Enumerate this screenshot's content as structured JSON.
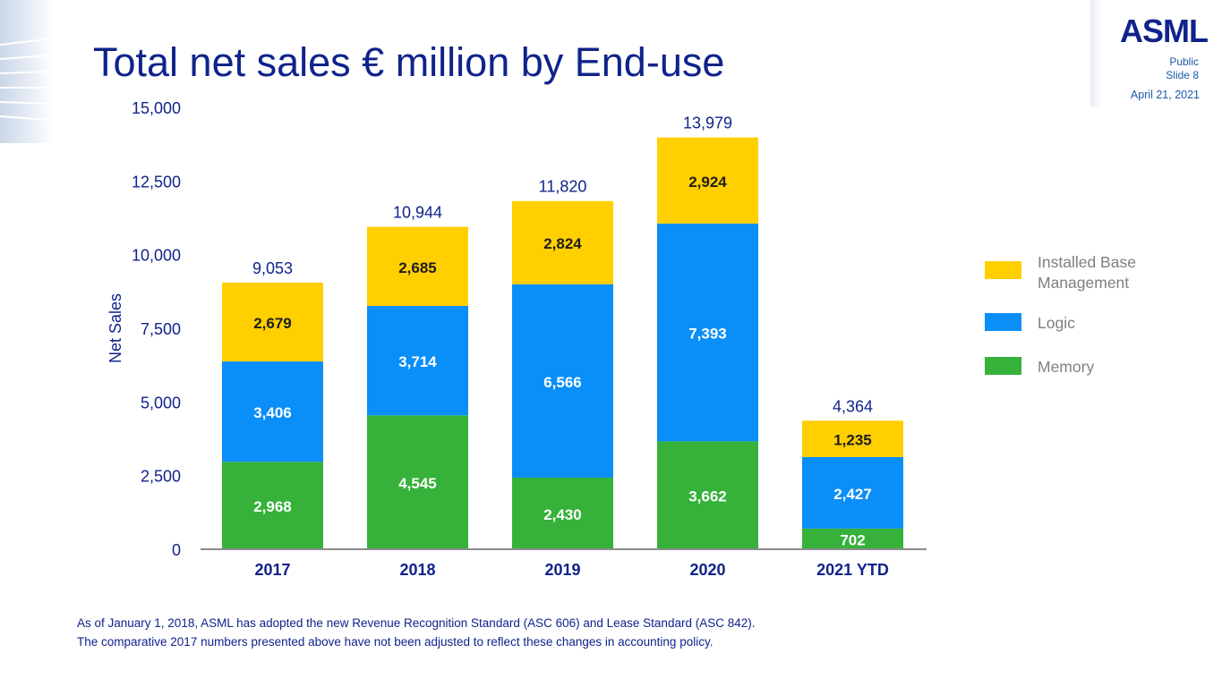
{
  "slide": {
    "title": "Total net sales € million by End-use",
    "logo_text": "ASML",
    "classification": "Public",
    "slide_number": "Slide 8",
    "date": "April 21, 2021",
    "footnote_lines": [
      "As of January 1, 2018, ASML has adopted the new Revenue Recognition Standard (ASC 606) and Lease Standard (ASC 842).",
      "The comparative 2017 numbers presented above have not been adjusted to reflect these changes in accounting policy."
    ]
  },
  "chart_data": {
    "type": "bar",
    "stacked": true,
    "ylabel": "Net Sales",
    "ylim": [
      0,
      15000
    ],
    "yticks": [
      0,
      2500,
      5000,
      7500,
      10000,
      12500,
      15000
    ],
    "ytick_labels": [
      "0",
      "2,500",
      "5,000",
      "7,500",
      "10,000",
      "12,500",
      "15,000"
    ],
    "categories": [
      "2017",
      "2018",
      "2019",
      "2020",
      "2021 YTD"
    ],
    "series": [
      {
        "name": "Memory",
        "color": "#36b13a",
        "values": [
          2968,
          4545,
          2430,
          3662,
          702
        ],
        "labels": [
          "2,968",
          "4,545",
          "2,430",
          "3,662",
          "702"
        ],
        "label_color": "#ffffff"
      },
      {
        "name": "Logic",
        "color": "#0a8ef8",
        "values": [
          3406,
          3714,
          6566,
          7393,
          2427
        ],
        "labels": [
          "3,406",
          "3,714",
          "6,566",
          "7,393",
          "2,427"
        ],
        "label_color": "#ffffff"
      },
      {
        "name": "Installed Base Management",
        "color": "#ffcf00",
        "values": [
          2679,
          2685,
          2824,
          2924,
          1235
        ],
        "labels": [
          "2,679",
          "2,685",
          "2,824",
          "2,924",
          "1,235"
        ],
        "label_color": "#1e1e1e"
      }
    ],
    "totals": [
      9053,
      10944,
      11820,
      13979,
      4364
    ],
    "total_labels": [
      "9,053",
      "10,944",
      "11,820",
      "13,979",
      "4,364"
    ],
    "legend": [
      {
        "name": "Installed Base",
        "name_line2": "Management",
        "color": "#ffcf00"
      },
      {
        "name": "Logic",
        "name_line2": "",
        "color": "#0a8ef8"
      },
      {
        "name": "Memory",
        "name_line2": "",
        "color": "#36b13a"
      }
    ],
    "legend_position": "right",
    "grid": false
  }
}
